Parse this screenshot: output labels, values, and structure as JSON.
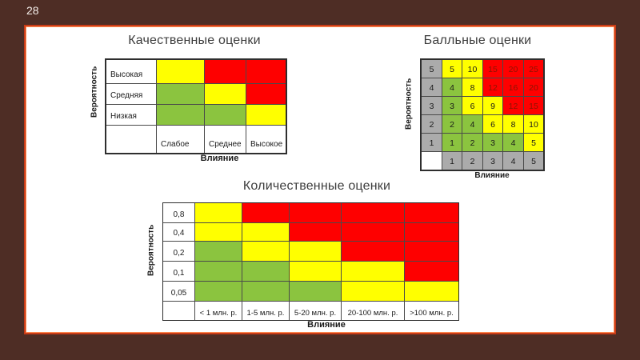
{
  "slide": {
    "number": "28",
    "background_color": "#4e2d25",
    "border_color": "#c93b17"
  },
  "colors": {
    "green": "#8bc43f",
    "yellow": "#ffff00",
    "red": "#fe0000",
    "gray": "#ababab",
    "white": "#ffffff",
    "red_cell_text": "#8b1403",
    "black_text": "#1a1a1a"
  },
  "chart_data": [
    {
      "type": "heatmap",
      "title": "Качественные оценки",
      "y_axis_label": "Вероятность",
      "x_axis_label": "Влияние",
      "row_labels": [
        "Высокая",
        "Средняя",
        "Низкая"
      ],
      "col_labels": [
        "Слабое",
        "Среднее",
        "Высокое"
      ],
      "cell_colors": [
        [
          "yellow",
          "red",
          "red"
        ],
        [
          "green",
          "yellow",
          "red"
        ],
        [
          "green",
          "green",
          "yellow"
        ]
      ]
    },
    {
      "type": "heatmap",
      "title": "Балльные оценки",
      "y_axis_label": "Вероятность",
      "x_axis_label": "Влияние",
      "row_labels": [
        "5",
        "4",
        "3",
        "2",
        "1"
      ],
      "col_labels": [
        "1",
        "2",
        "3",
        "4",
        "5"
      ],
      "cell_values": [
        [
          "5",
          "10",
          "15",
          "20",
          "25"
        ],
        [
          "4",
          "8",
          "12",
          "16",
          "20"
        ],
        [
          "3",
          "6",
          "9",
          "12",
          "15"
        ],
        [
          "2",
          "4",
          "6",
          "8",
          "10"
        ],
        [
          "1",
          "2",
          "3",
          "4",
          "5"
        ]
      ],
      "cell_colors": [
        [
          "yellow",
          "yellow",
          "red",
          "red",
          "red"
        ],
        [
          "green",
          "yellow",
          "red",
          "red",
          "red"
        ],
        [
          "green",
          "yellow",
          "yellow",
          "red",
          "red"
        ],
        [
          "green",
          "green",
          "yellow",
          "yellow",
          "yellow"
        ],
        [
          "green",
          "green",
          "green",
          "green",
          "yellow"
        ]
      ]
    },
    {
      "type": "heatmap",
      "title": "Количественные оценки",
      "y_axis_label": "Вероятность",
      "x_axis_label": "Влияние",
      "row_labels": [
        "0,8",
        "0,4",
        "0,2",
        "0,1",
        "0,05"
      ],
      "col_labels": [
        "< 1 млн. р.",
        "1-5 млн. р.",
        "5-20 млн. р.",
        "20-100 млн. р.",
        ">100 млн. р."
      ],
      "cell_colors": [
        [
          "yellow",
          "red",
          "red",
          "red",
          "red"
        ],
        [
          "yellow",
          "yellow",
          "red",
          "red",
          "red"
        ],
        [
          "green",
          "yellow",
          "yellow",
          "red",
          "red"
        ],
        [
          "green",
          "green",
          "yellow",
          "yellow",
          "red"
        ],
        [
          "green",
          "green",
          "green",
          "yellow",
          "yellow"
        ]
      ]
    }
  ]
}
